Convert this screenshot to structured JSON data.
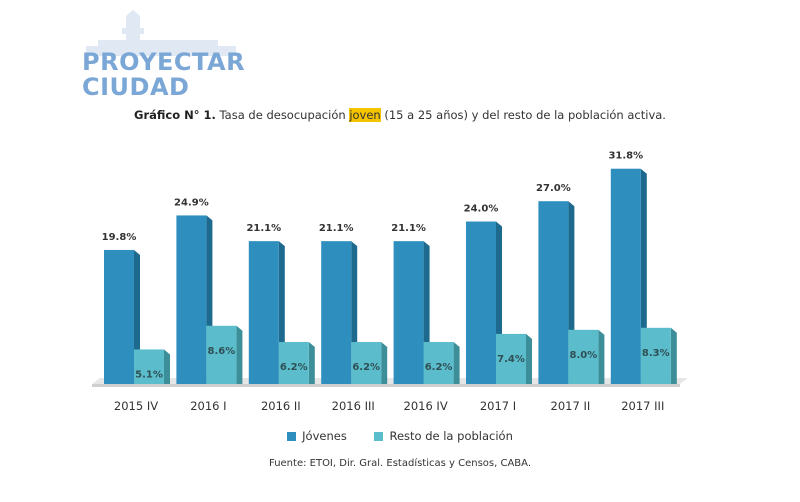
{
  "logo": {
    "line1": "PROYECTAR",
    "line2": "CIUDAD",
    "color": "#7ba7d6"
  },
  "title": {
    "prefix": "Gráfico N° 1.",
    "before": "Tasa de desocupación",
    "highlight": "joven",
    "after": "(15 a 25 años) y del resto de la población activa."
  },
  "source": "Fuente: ETOI, Dir. Gral. Estadísticas y Censos, CABA.",
  "chart_data": {
    "type": "bar",
    "title": "Tasa de desocupación joven (15 a 25 años) y del resto de la población activa.",
    "categories": [
      "2015 IV",
      "2016 I",
      "2016 II",
      "2016 III",
      "2016 IV",
      "2017 I",
      "2017 II",
      "2017 III"
    ],
    "series": [
      {
        "name": "Jóvenes",
        "values": [
          19.8,
          24.9,
          21.1,
          21.1,
          21.1,
          24.0,
          27.0,
          31.8
        ],
        "labels": [
          "19.8%",
          "24.9%",
          "21.1%",
          "21.1%",
          "21.1%",
          "24.0%",
          "27.0%",
          "31.8%"
        ],
        "color": "#2e8fbe",
        "side_color": "#1e6a8f"
      },
      {
        "name": "Resto de la población",
        "values": [
          5.1,
          8.6,
          6.2,
          6.2,
          6.2,
          7.4,
          8.0,
          8.3
        ],
        "labels": [
          "5.1%",
          "8.6%",
          "6.2%",
          "6.2%",
          "6.2%",
          "7.4%",
          "8.0%",
          "8.3%"
        ],
        "color": "#5bbdcb",
        "side_color": "#3c8e99"
      }
    ],
    "ylim": [
      0,
      32
    ],
    "legend": "bottom",
    "grid": false
  }
}
